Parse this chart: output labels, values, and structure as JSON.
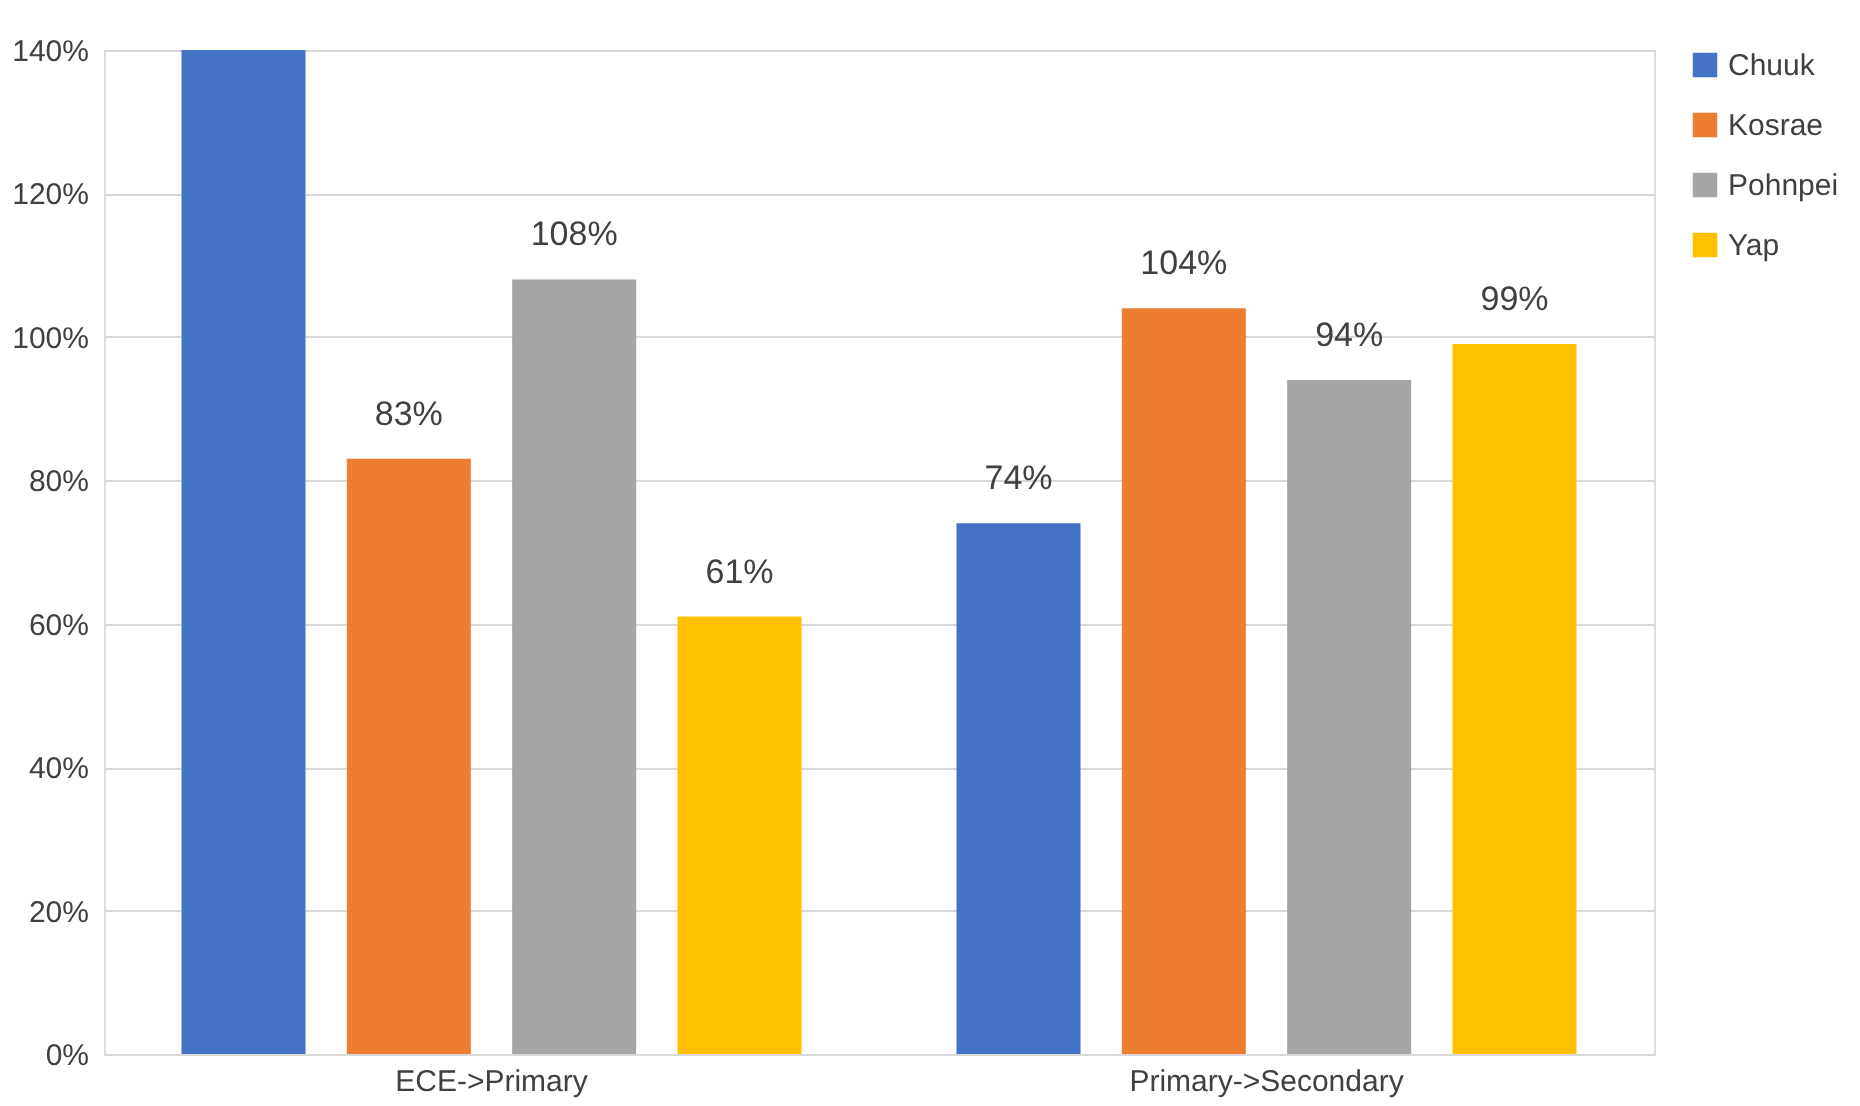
{
  "chart_data": {
    "type": "bar",
    "categories": [
      "ECE->Primary",
      "Primary->Secondary"
    ],
    "series": [
      {
        "name": "Chuuk",
        "color": "#4472c4",
        "values": [
          140,
          74
        ],
        "value_labels": [
          null,
          "74%"
        ]
      },
      {
        "name": "Kosrae",
        "color": "#ed7d31",
        "values": [
          83,
          104
        ],
        "value_labels": [
          "83%",
          "104%"
        ]
      },
      {
        "name": "Pohnpei",
        "color": "#a5a5a5",
        "values": [
          108,
          94
        ],
        "value_labels": [
          "108%",
          "94%"
        ]
      },
      {
        "name": "Yap",
        "color": "#ffc000",
        "values": [
          61,
          99
        ],
        "value_labels": [
          "61%",
          "99%"
        ]
      }
    ],
    "ylim": [
      0,
      140
    ],
    "yticks": [
      {
        "value": 0,
        "label": "0%"
      },
      {
        "value": 20,
        "label": "20%"
      },
      {
        "value": 40,
        "label": "40%"
      },
      {
        "value": 60,
        "label": "60%"
      },
      {
        "value": 80,
        "label": "80%"
      },
      {
        "value": 100,
        "label": "100%"
      },
      {
        "value": 120,
        "label": "120%"
      },
      {
        "value": 140,
        "label": "140%"
      }
    ],
    "grid": "y",
    "legend": "right"
  }
}
